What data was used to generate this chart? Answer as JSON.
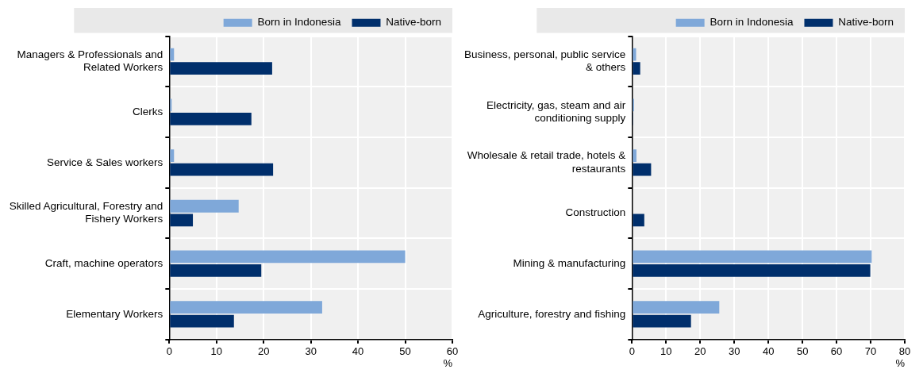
{
  "chart_data": [
    {
      "type": "bar",
      "orientation": "horizontal",
      "categories": [
        "Managers & Professionals and Related Workers",
        "Clerks",
        "Service & Sales workers",
        "Skilled Agricultural, Forestry and Fishery Workers",
        "Craft, machine operators",
        "Elementary Workers"
      ],
      "series": [
        {
          "name": "Born in Indonesia",
          "color": "#7fa8d9",
          "values": [
            1,
            0.5,
            1,
            14.7,
            50,
            32.4
          ]
        },
        {
          "name": "Native-born",
          "color": "#002f6c",
          "values": [
            21.8,
            17.4,
            22,
            5,
            19.5,
            13.7
          ]
        }
      ],
      "xlim": [
        0,
        60
      ],
      "xticks": [
        0,
        10,
        20,
        30,
        40,
        50,
        60
      ],
      "xlabel": "%",
      "grid": true,
      "legend": "top"
    },
    {
      "type": "bar",
      "orientation": "horizontal",
      "categories": [
        "Business, personal, public service & others",
        "Electricity, gas, steam and air conditioning supply",
        "Wholesale & retail trade, hotels & restaurants",
        "Construction",
        "Mining & manufacturing",
        "Agriculture, forestry and fishing"
      ],
      "series": [
        {
          "name": "Born in Indonesia",
          "color": "#7fa8d9",
          "values": [
            1.2,
            0.6,
            1.3,
            0,
            70.3,
            25.6
          ]
        },
        {
          "name": "Native-born",
          "color": "#002f6c",
          "values": [
            2.4,
            0.3,
            5.6,
            3.6,
            69.9,
            17.3
          ]
        }
      ],
      "xlim": [
        0,
        80
      ],
      "xticks": [
        0,
        10,
        20,
        30,
        40,
        50,
        60,
        70,
        80
      ],
      "xlabel": "%",
      "grid": true,
      "legend": "top"
    }
  ]
}
